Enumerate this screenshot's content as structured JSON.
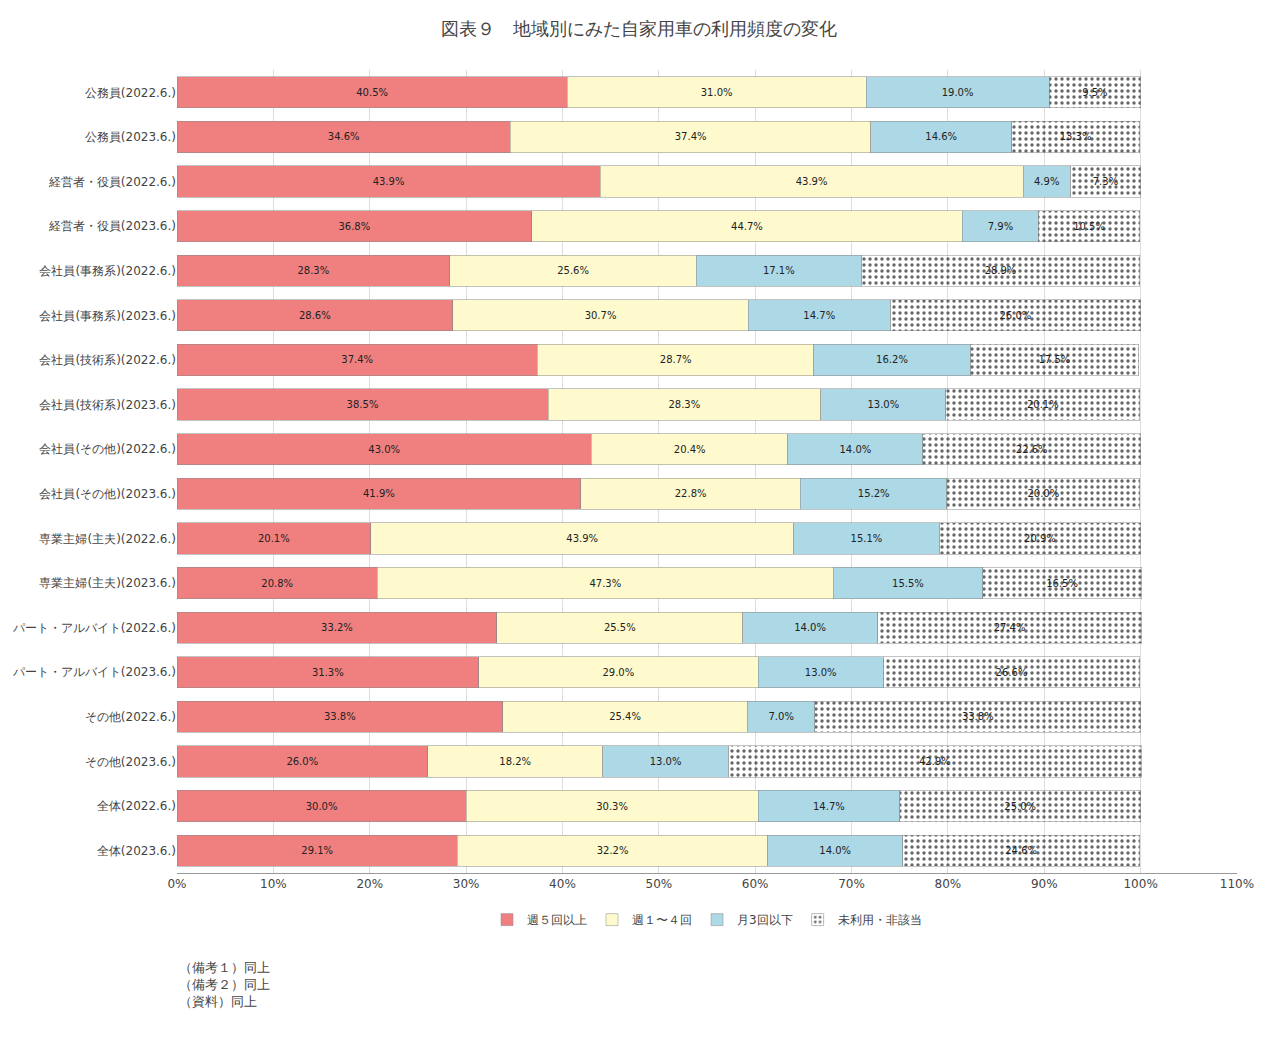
{
  "chart_data": {
    "type": "bar",
    "orientation": "horizontal",
    "stacked": true,
    "data_labels": true,
    "grid": true,
    "legend": "bottom",
    "title": "図表９　地域別にみた自家用車の利用頻度の変化",
    "annotations": [
      "（備考１）同上",
      "（備考２）同上",
      "（資料）同上"
    ],
    "categories": [
      "公務員(2022.6.)",
      "公務員(2023.6.)",
      "経営者・役員(2022.6.)",
      "経営者・役員(2023.6.)",
      "会社員(事務系)(2022.6.)",
      "会社員(事務系)(2023.6.)",
      "会社員(技術系)(2022.6.)",
      "会社員(技術系)(2023.6.)",
      "会社員(その他)(2022.6.)",
      "会社員(その他)(2023.6.)",
      "専業主婦(主夫)(2022.6.)",
      "専業主婦(主夫)(2023.6.)",
      "パート・アルバイト(2022.6.)",
      "パート・アルバイト(2023.6.)",
      "その他(2022.6.)",
      "その他(2023.6.)",
      "全体(2022.6.)",
      "全体(2023.6.)"
    ],
    "series": [
      {
        "name": "週５回以上",
        "color": "#F08080",
        "values": [
          40.5,
          34.6,
          43.9,
          36.8,
          28.3,
          28.6,
          37.4,
          38.5,
          43.0,
          41.9,
          20.1,
          20.8,
          33.2,
          31.3,
          33.8,
          26.0,
          30.0,
          29.1
        ],
        "value_labels": [
          "40.5%",
          "34.6%",
          "43.9%",
          "36.8%",
          "28.3%",
          "28.6%",
          "37.4%",
          "38.5%",
          "43.0%",
          "41.9%",
          "20.1%",
          "20.8%",
          "33.2%",
          "31.3%",
          "33.8%",
          "26.0%",
          "30.0%",
          "29.1%"
        ]
      },
      {
        "name": "週１〜４回",
        "color": "#FFFACD",
        "values": [
          31.0,
          37.4,
          43.9,
          44.7,
          25.6,
          30.7,
          28.7,
          28.3,
          20.4,
          22.8,
          43.9,
          47.3,
          25.5,
          29.0,
          25.4,
          18.2,
          30.3,
          32.2
        ],
        "value_labels": [
          "31.0%",
          "37.4%",
          "43.9%",
          "44.7%",
          "25.6%",
          "30.7%",
          "28.7%",
          "28.3%",
          "20.4%",
          "22.8%",
          "43.9%",
          "47.3%",
          "25.5%",
          "29.0%",
          "25.4%",
          "18.2%",
          "30.3%",
          "32.2%"
        ]
      },
      {
        "name": "月3回以下",
        "color": "#ADD8E6",
        "values": [
          19.0,
          14.6,
          4.9,
          7.9,
          17.1,
          14.7,
          16.2,
          13.0,
          14.0,
          15.2,
          15.1,
          15.5,
          14.0,
          13.0,
          7.0,
          13.0,
          14.7,
          14.0
        ],
        "value_labels": [
          "19.0%",
          "14.6%",
          "4.9%",
          "7.9%",
          "17.1%",
          "14.7%",
          "16.2%",
          "13.0%",
          "14.0%",
          "15.2%",
          "15.1%",
          "15.5%",
          "14.0%",
          "13.0%",
          "7.0%",
          "13.0%",
          "14.7%",
          "14.0%"
        ]
      },
      {
        "name": "未利用・非該当",
        "color": "#C0C0C0",
        "marker": "dots",
        "values": [
          9.5,
          13.3,
          7.3,
          10.5,
          28.9,
          26.0,
          17.5,
          20.1,
          22.6,
          20.0,
          20.9,
          16.5,
          27.4,
          26.6,
          33.8,
          42.9,
          25.0,
          24.6
        ],
        "value_labels": [
          "9.5%",
          "13.3%",
          "7.3%",
          "10.5%",
          "28.9%",
          "26.0%",
          "17.5%",
          "20.1%",
          "22.6%",
          "20.0%",
          "20.9%",
          "16.5%",
          "27.4%",
          "26.6%",
          "33.8%",
          "42.9%",
          "25.0%",
          "24.6%"
        ]
      }
    ],
    "xlim": [
      0,
      110
    ],
    "xticks": [
      {
        "value": 0,
        "label": "0%"
      },
      {
        "value": 10,
        "label": "10%"
      },
      {
        "value": 20,
        "label": "20%"
      },
      {
        "value": 30,
        "label": "30%"
      },
      {
        "value": 40,
        "label": "40%"
      },
      {
        "value": 50,
        "label": "50%"
      },
      {
        "value": 60,
        "label": "60%"
      },
      {
        "value": 70,
        "label": "70%"
      },
      {
        "value": 80,
        "label": "80%"
      },
      {
        "value": 90,
        "label": "90%"
      },
      {
        "value": 100,
        "label": "100%"
      },
      {
        "value": 110,
        "label": "110%"
      }
    ]
  }
}
